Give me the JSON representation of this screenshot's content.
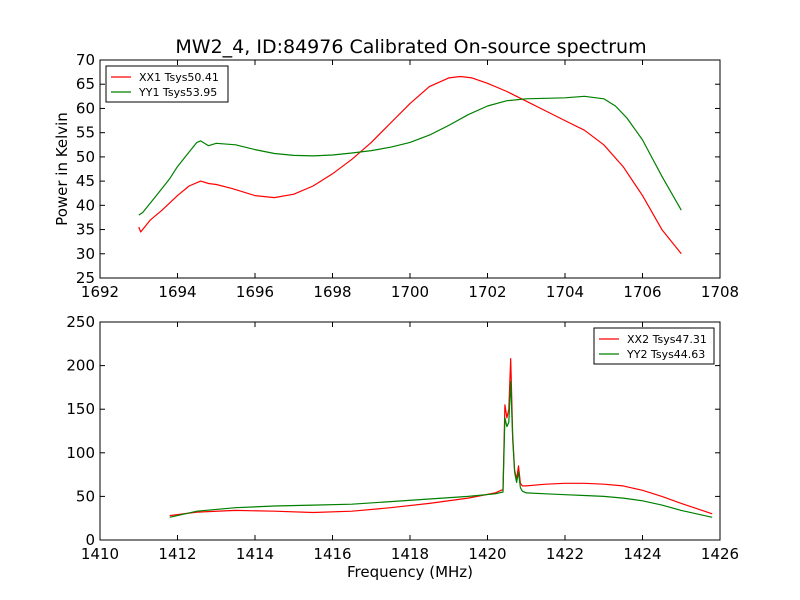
{
  "figure": {
    "title": "MW2_4, ID:84976 Calibrated On-source spectrum",
    "background": "#ffffff"
  },
  "chart_data": [
    {
      "type": "line",
      "title": "MW2_4, ID:84976 Calibrated On-source spectrum",
      "xlabel": "",
      "ylabel": "Power in Kelvin",
      "xlim": [
        1692,
        1708
      ],
      "ylim": [
        25,
        70
      ],
      "xticks": [
        1692,
        1694,
        1696,
        1698,
        1700,
        1702,
        1704,
        1706,
        1708
      ],
      "yticks": [
        25,
        30,
        35,
        40,
        45,
        50,
        55,
        60,
        65,
        70
      ],
      "grid": false,
      "legend": "top-left",
      "series": [
        {
          "name": "XX1 Tsys50.41",
          "color": "#ff0000",
          "x": [
            1693.0,
            1693.05,
            1693.1,
            1693.3,
            1693.6,
            1694.0,
            1694.3,
            1694.6,
            1694.8,
            1695.0,
            1695.4,
            1696.0,
            1696.5,
            1697.0,
            1697.5,
            1698.0,
            1698.5,
            1699.0,
            1699.5,
            1700.0,
            1700.5,
            1701.0,
            1701.3,
            1701.6,
            1702.0,
            1702.5,
            1703.0,
            1703.5,
            1704.0,
            1704.5,
            1705.0,
            1705.5,
            1706.0,
            1706.5,
            1707.0
          ],
          "y": [
            35.5,
            34.5,
            35.0,
            37.0,
            39.0,
            42.0,
            44.0,
            45.0,
            44.5,
            44.3,
            43.5,
            42.0,
            41.6,
            42.3,
            44.0,
            46.5,
            49.5,
            53.0,
            57.0,
            61.0,
            64.5,
            66.3,
            66.6,
            66.3,
            65.2,
            63.5,
            61.5,
            59.5,
            57.5,
            55.5,
            52.5,
            48.0,
            42.0,
            35.0,
            30.0
          ]
        },
        {
          "name": "YY1 Tsys53.95",
          "color": "#008000",
          "x": [
            1693.0,
            1693.1,
            1693.4,
            1693.8,
            1694.0,
            1694.3,
            1694.5,
            1694.6,
            1694.8,
            1695.0,
            1695.5,
            1696.0,
            1696.5,
            1697.0,
            1697.5,
            1698.0,
            1698.5,
            1699.0,
            1699.5,
            1700.0,
            1700.5,
            1701.0,
            1701.5,
            1702.0,
            1702.5,
            1703.0,
            1703.5,
            1704.0,
            1704.5,
            1705.0,
            1705.3,
            1705.6,
            1706.0,
            1706.5,
            1707.0
          ],
          "y": [
            38.0,
            38.5,
            41.5,
            45.5,
            48.0,
            51.0,
            53.0,
            53.3,
            52.3,
            52.8,
            52.5,
            51.5,
            50.7,
            50.3,
            50.2,
            50.4,
            50.8,
            51.3,
            52.0,
            53.0,
            54.5,
            56.5,
            58.7,
            60.5,
            61.6,
            62.0,
            62.1,
            62.2,
            62.5,
            62.0,
            60.5,
            58.0,
            53.5,
            46.0,
            39.0
          ]
        }
      ]
    },
    {
      "type": "line",
      "title": "",
      "xlabel": "Frequency (MHz)",
      "ylabel": "",
      "xlim": [
        1410,
        1426
      ],
      "ylim": [
        0,
        250
      ],
      "xticks": [
        1410,
        1412,
        1414,
        1416,
        1418,
        1420,
        1422,
        1424,
        1426
      ],
      "yticks": [
        0,
        50,
        100,
        150,
        200,
        250
      ],
      "grid": false,
      "legend": "top-right",
      "series": [
        {
          "name": "XX2 Tsys47.31",
          "color": "#ff0000",
          "x": [
            1411.8,
            1412.5,
            1413.5,
            1414.5,
            1415.5,
            1416.5,
            1417.5,
            1418.5,
            1419.5,
            1420.2,
            1420.4,
            1420.45,
            1420.5,
            1420.55,
            1420.6,
            1420.65,
            1420.7,
            1420.75,
            1420.8,
            1420.85,
            1420.9,
            1421.0,
            1421.5,
            1422.0,
            1422.5,
            1423.0,
            1423.5,
            1424.0,
            1424.5,
            1425.0,
            1425.8
          ],
          "y": [
            28,
            32,
            34,
            33,
            31.5,
            33,
            37,
            42,
            48,
            54,
            58,
            155,
            140,
            150,
            208,
            120,
            80,
            70,
            85,
            65,
            62,
            62,
            64,
            65,
            65,
            64,
            62,
            57,
            50,
            42,
            30
          ]
        },
        {
          "name": "YY2 Tsys44.63",
          "color": "#008000",
          "x": [
            1411.8,
            1412.5,
            1413.5,
            1414.5,
            1415.5,
            1416.5,
            1417.5,
            1418.5,
            1419.5,
            1420.2,
            1420.4,
            1420.45,
            1420.5,
            1420.55,
            1420.6,
            1420.65,
            1420.7,
            1420.75,
            1420.8,
            1420.85,
            1420.9,
            1421.0,
            1421.5,
            1422.0,
            1422.5,
            1423.0,
            1423.5,
            1424.0,
            1424.5,
            1425.0,
            1425.8
          ],
          "y": [
            26,
            33,
            37,
            39,
            40,
            41,
            44,
            47,
            50,
            53,
            55,
            140,
            130,
            135,
            182,
            115,
            78,
            66,
            78,
            60,
            56,
            54,
            53,
            52,
            51,
            50,
            48,
            45,
            40,
            34,
            26
          ]
        }
      ]
    }
  ]
}
